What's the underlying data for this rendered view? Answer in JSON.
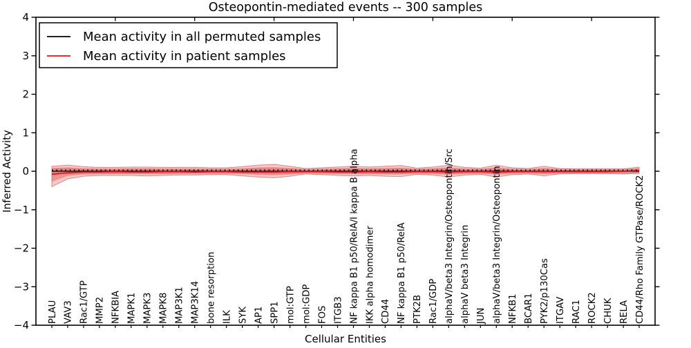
{
  "figure": {
    "title": "Osteopontin-mediated events -- 300 samples",
    "xlabel": "Cellular Entities",
    "ylabel": "Inferred Activity"
  },
  "legend": {
    "position": "upper left",
    "items": [
      {
        "id": "legend-permuted",
        "label": "Mean activity in all permuted samples",
        "color": "#000000"
      },
      {
        "id": "legend-patient",
        "label": "Mean activity in patient samples",
        "color": "#ff0000"
      }
    ]
  },
  "chart_data": {
    "type": "line",
    "title": "Osteopontin-mediated events -- 300 samples",
    "xlabel": "Cellular Entities",
    "ylabel": "Inferred Activity",
    "ylim": [
      -4,
      4
    ],
    "yticks": [
      4,
      3,
      2,
      1,
      0,
      -1,
      -2,
      -3,
      -4
    ],
    "ytick_labels": [
      "4",
      "3",
      "2",
      "1",
      "0",
      "−1",
      "−2",
      "−3",
      "−4"
    ],
    "top_axis_ticks_x": [
      5,
      10,
      15,
      20,
      25,
      30,
      35
    ],
    "grid": false,
    "legend_position": "upper left",
    "categories": [
      "PLAU",
      "VAV3",
      "Rac1/GTP",
      "MMP2",
      "NFKBIA",
      "MAPK1",
      "MAPK3",
      "MAPK8",
      "MAP3K1",
      "MAP3K14",
      "bone resorption",
      "ILK",
      "SYK",
      "AP1",
      "SPP1",
      "mol:GTP",
      "mol:GDP",
      "FOS",
      "ITGB3",
      "NF kappa B1 p50/RelA/I kappa B alpha",
      "IKK alpha homodimer",
      "CD44",
      "NF kappa B1 p50/RelA",
      "PTK2B",
      "Rac1/GDP",
      "alphaV/beta3 Integrin/Osteopontin/Src",
      "alphaV beta3 Integrin",
      "JUN",
      "alphaV/beta3 Integrin/Osteopontin",
      "NFKB1",
      "BCAR1",
      "PYK2/p130Cas",
      "ITGAV",
      "RAC1",
      "ROCK2",
      "CHUK",
      "RELA",
      "CD44/Rho Family GTPase/ROCK2"
    ],
    "series": [
      {
        "id": "permuted-mean-line",
        "name": "Mean activity in all permuted samples",
        "color": "#000000",
        "style": "solid",
        "width": 1.3,
        "value_constant": 0
      },
      {
        "id": "patient-mean-line",
        "name": "Mean activity in patient samples",
        "color": "#e31212",
        "style": "solid",
        "width": 1.7,
        "values": [
          -0.08,
          -0.04,
          -0.02,
          -0.02,
          -0.01,
          -0.02,
          -0.02,
          -0.01,
          -0.01,
          -0.02,
          -0.01,
          -0.01,
          -0.02,
          -0.02,
          -0.02,
          -0.01,
          -0.01,
          -0.01,
          -0.02,
          -0.02,
          -0.01,
          -0.02,
          -0.02,
          -0.01,
          -0.01,
          -0.02,
          -0.01,
          -0.01,
          -0.02,
          -0.01,
          -0.01,
          -0.01,
          -0.01,
          -0.01,
          -0.01,
          -0.01,
          0.0,
          0.02
        ]
      },
      {
        "id": "zero-dotted-line",
        "name": "zero reference",
        "color": "#000000",
        "style": "dotted",
        "width": 1.6,
        "value_constant": 0
      }
    ],
    "bands": [
      {
        "name": "permuted-spread",
        "color": "#bfbfbf",
        "opacity": 0.55,
        "edge": "none",
        "upper_constant": 0.08,
        "lower_constant": -0.08
      },
      {
        "name": "patient-spread-outer",
        "color": "#e03030",
        "opacity": 0.27,
        "edge": "#d04040",
        "upper": [
          0.13,
          0.16,
          0.12,
          0.1,
          0.1,
          0.11,
          0.11,
          0.1,
          0.1,
          0.1,
          0.09,
          0.09,
          0.12,
          0.16,
          0.18,
          0.13,
          0.07,
          0.09,
          0.11,
          0.13,
          0.11,
          0.13,
          0.15,
          0.08,
          0.11,
          0.16,
          0.1,
          0.08,
          0.16,
          0.09,
          0.07,
          0.13,
          0.07,
          0.06,
          0.06,
          0.06,
          0.06,
          0.11
        ],
        "lower": [
          -0.4,
          -0.2,
          -0.13,
          -0.11,
          -0.11,
          -0.11,
          -0.12,
          -0.11,
          -0.1,
          -0.1,
          -0.09,
          -0.09,
          -0.12,
          -0.15,
          -0.17,
          -0.13,
          -0.07,
          -0.09,
          -0.11,
          -0.12,
          -0.11,
          -0.13,
          -0.14,
          -0.08,
          -0.1,
          -0.15,
          -0.1,
          -0.08,
          -0.15,
          -0.09,
          -0.07,
          -0.12,
          -0.07,
          -0.06,
          -0.06,
          -0.06,
          -0.07,
          -0.05
        ]
      },
      {
        "name": "patient-spread-inner",
        "color": "#e03030",
        "opacity": 0.34,
        "edge": "none",
        "upper": [
          0.08,
          0.1,
          0.07,
          0.06,
          0.06,
          0.07,
          0.07,
          0.06,
          0.06,
          0.06,
          0.05,
          0.05,
          0.07,
          0.1,
          0.11,
          0.08,
          0.04,
          0.05,
          0.07,
          0.08,
          0.07,
          0.08,
          0.09,
          0.05,
          0.07,
          0.1,
          0.06,
          0.05,
          0.1,
          0.05,
          0.04,
          0.08,
          0.04,
          0.04,
          0.04,
          0.04,
          0.04,
          0.07
        ],
        "lower": [
          -0.27,
          -0.12,
          -0.08,
          -0.07,
          -0.07,
          -0.07,
          -0.07,
          -0.07,
          -0.06,
          -0.06,
          -0.05,
          -0.05,
          -0.07,
          -0.09,
          -0.1,
          -0.08,
          -0.04,
          -0.05,
          -0.07,
          -0.07,
          -0.07,
          -0.08,
          -0.08,
          -0.05,
          -0.06,
          -0.09,
          -0.06,
          -0.05,
          -0.09,
          -0.05,
          -0.04,
          -0.07,
          -0.04,
          -0.04,
          -0.04,
          -0.04,
          -0.04,
          -0.03
        ]
      }
    ]
  }
}
